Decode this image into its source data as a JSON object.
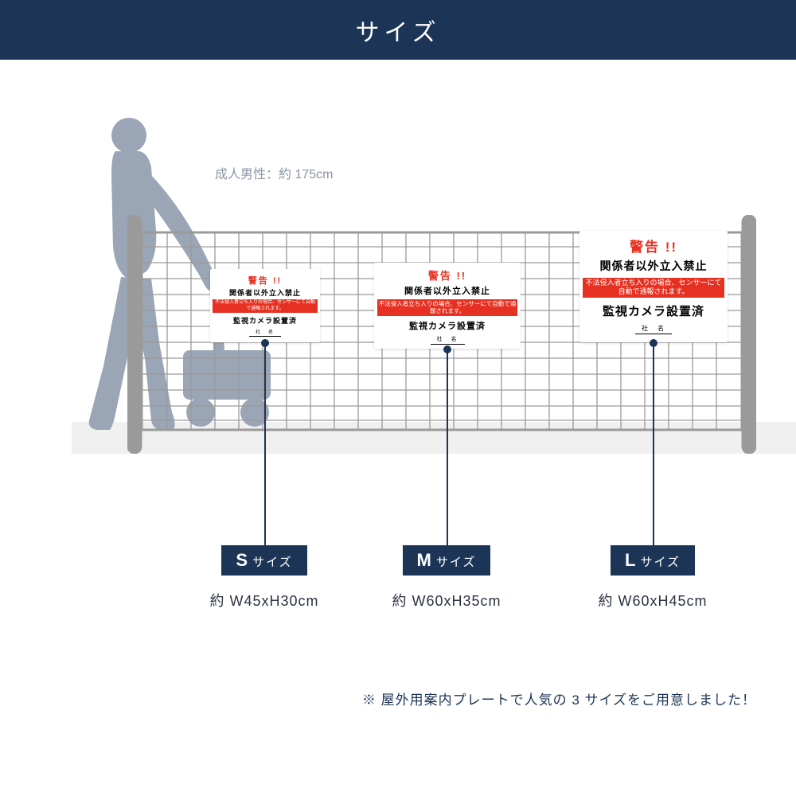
{
  "colors": {
    "header_bg": "#1c3556",
    "header_text": "#ffffff",
    "silhouette": "#9aa5b5",
    "scale_text": "#8b95a5",
    "fence": "#9a9a9a",
    "sign_red": "#e63122",
    "leader": "#1c3556",
    "badge_bg": "#1c3556",
    "badge_text": "#ffffff",
    "note": "#1c3556",
    "ground": "#f0f0f0"
  },
  "header": {
    "title": "サイズ"
  },
  "scale_label": "成人男性：約 175cm",
  "sign": {
    "warn": "警告 !!",
    "line1": "関係者以外立入禁止",
    "red_line": "不法侵入者立ち入りの場合、センサーにて自動で通報されます。",
    "line2": "監視カメラ設置済",
    "company": "社　名"
  },
  "sizes": {
    "s": {
      "letter": "S",
      "suffix": "サイズ",
      "dim": "約 W45xH30cm"
    },
    "m": {
      "letter": "M",
      "suffix": "サイズ",
      "dim": "約 W60xH35cm"
    },
    "l": {
      "letter": "L",
      "suffix": "サイズ",
      "dim": "約 W60xH45cm"
    }
  },
  "note": "※ 屋外用案内プレートで人気の 3 サイズをご用意しました！"
}
